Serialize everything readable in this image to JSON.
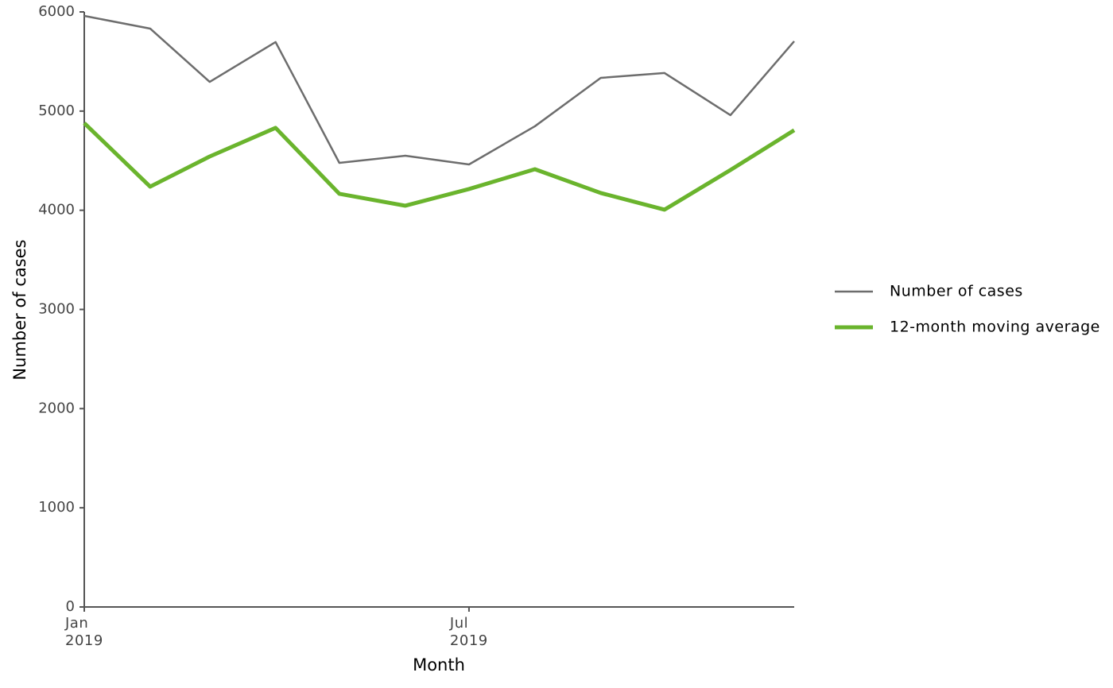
{
  "chart_data": {
    "type": "line",
    "x_label": "Month",
    "y_label": "Number of cases",
    "x": [
      "2019-01",
      "2019-02",
      "2019-03",
      "2019-04",
      "2019-05",
      "2019-06",
      "2019-07",
      "2019-08",
      "2019-09",
      "2019-10",
      "2019-11",
      "2019-12"
    ],
    "series": [
      {
        "name": "Number of cases",
        "color": "#6d6d6d",
        "width": 2.5,
        "values": [
          5960,
          5832,
          5295,
          5696,
          4478,
          4550,
          4462,
          4847,
          5335,
          5384,
          4959,
          5704
        ]
      },
      {
        "name": "12-month moving average",
        "color": "#6ab42d",
        "width": 5,
        "values": [
          4879,
          4238,
          4542,
          4831,
          4166,
          4046,
          4214,
          4414,
          4174,
          4006,
          4406,
          4807
        ]
      }
    ],
    "xlim": [
      "2019-01",
      "2019-12"
    ],
    "xticks": [
      {
        "value": "2019-01",
        "label": "Jan\n2019"
      },
      {
        "value": "2019-07",
        "label": "Jul\n2019"
      }
    ],
    "ylim": [
      0,
      6000
    ],
    "yticks": [
      0,
      1000,
      2000,
      3000,
      4000,
      5000,
      6000
    ],
    "grid": false,
    "legend": "right"
  }
}
